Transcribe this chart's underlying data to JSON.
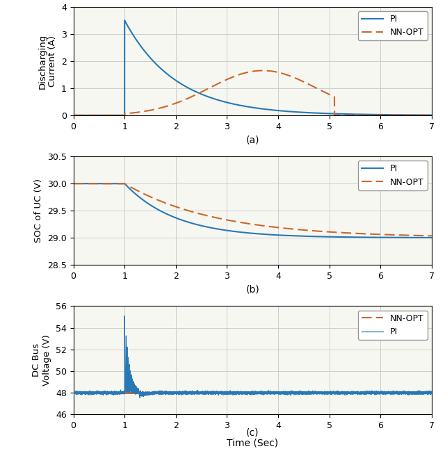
{
  "pi_color": "#2878b5",
  "nn_color": "#cd6628",
  "background": "#f7f7f2",
  "subplot_a": {
    "title": "(a)",
    "ylabel": "Discharging\nCurrent (A)",
    "ylim": [
      0,
      4
    ],
    "yticks": [
      0,
      1,
      2,
      3,
      4
    ],
    "xlim": [
      0,
      7
    ],
    "xticks": [
      0,
      1,
      2,
      3,
      4,
      5,
      6,
      7
    ]
  },
  "subplot_b": {
    "title": "(b)",
    "ylabel": "SOC of UC (V)",
    "ylim": [
      28.5,
      30.5
    ],
    "yticks": [
      28.5,
      29.0,
      29.5,
      30.0,
      30.5
    ],
    "xlim": [
      0,
      7
    ],
    "xticks": [
      0,
      1,
      2,
      3,
      4,
      5,
      6,
      7
    ]
  },
  "subplot_c": {
    "title": "(c)",
    "ylabel": "DC Bus\nVoltage (V)",
    "xlabel": "Time (Sec)",
    "ylim": [
      46,
      56
    ],
    "yticks": [
      46,
      48,
      50,
      52,
      54,
      56
    ],
    "xlim": [
      0,
      7
    ],
    "xticks": [
      0,
      1,
      2,
      3,
      4,
      5,
      6,
      7
    ]
  },
  "legend_pi": "PI",
  "legend_nn": "NN-OPT"
}
